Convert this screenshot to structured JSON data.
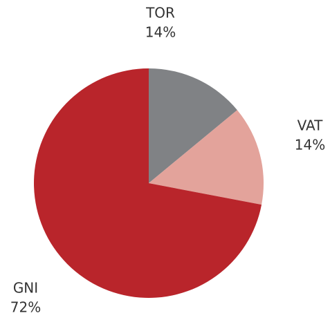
{
  "chart_data": {
    "type": "pie",
    "categories": [
      "TOR",
      "VAT",
      "GNI"
    ],
    "values": [
      14,
      14,
      72
    ],
    "value_labels": [
      "14%",
      "14%",
      "72%"
    ],
    "colors": [
      "#808285",
      "#e3a39b",
      "#b9252b"
    ]
  }
}
